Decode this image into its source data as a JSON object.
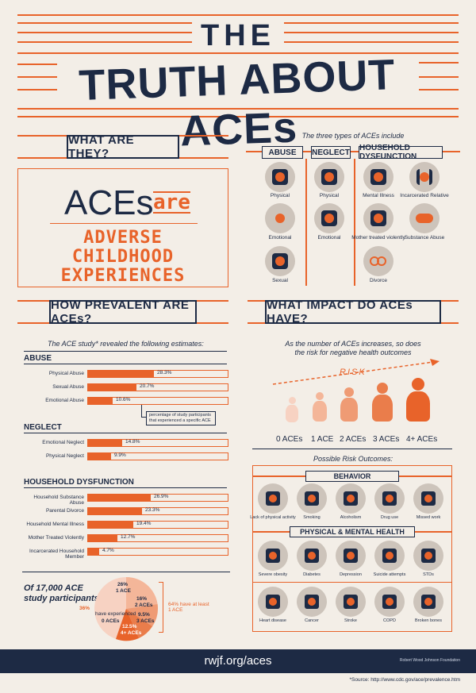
{
  "header": {
    "line1": "THE",
    "line2": "TRUTH ABOUT ACEs"
  },
  "what": {
    "heading": "WHAT ARE THEY?",
    "aces": "ACEs",
    "are": "are",
    "def": [
      "ADVERSE",
      "CHILDHOOD",
      "EXPERIENCES"
    ]
  },
  "types": {
    "title": "The three types of ACEs include",
    "columns": [
      {
        "label": "ABUSE",
        "items": [
          "Physical",
          "Emotional",
          "Sexual"
        ]
      },
      {
        "label": "NEGLECT",
        "items": [
          "Physical",
          "Emotional"
        ]
      },
      {
        "label": "HOUSEHOLD DYSFUNCTION",
        "items": [
          "Mental Illness",
          "Incarcerated Relative",
          "Mother treated violently",
          "Substance Abuse",
          "Divorce"
        ]
      }
    ]
  },
  "prevalence": {
    "heading": "HOW PREVALENT ARE ACEs?",
    "subtitle": "The ACE study* revealed the following estimates:",
    "abuse": {
      "label": "ABUSE",
      "rows": [
        {
          "name": "Physical Abuse",
          "value": "28.3%",
          "pct": 28.3
        },
        {
          "name": "Sexual Abuse",
          "value": "20.7%",
          "pct": 20.7
        },
        {
          "name": "Emotional Abuse",
          "value": "10.6%",
          "pct": 10.6
        }
      ]
    },
    "note": "percentage of study participants that experienced a specific ACE",
    "neglect": {
      "label": "NEGLECT",
      "rows": [
        {
          "name": "Emotional Neglect",
          "value": "14.8%",
          "pct": 14.8
        },
        {
          "name": "Physical Neglect",
          "value": "9.9%",
          "pct": 9.9
        }
      ]
    },
    "household": {
      "label": "HOUSEHOLD DYSFUNCTION",
      "rows": [
        {
          "name": "Household Substance Abuse",
          "value": "26.9%",
          "pct": 26.9
        },
        {
          "name": "Parental Divorce",
          "value": "23.3%",
          "pct": 23.3
        },
        {
          "name": "Household Mental Illness",
          "value": "19.4%",
          "pct": 19.4
        },
        {
          "name": "Mother Treated Violently",
          "value": "12.7%",
          "pct": 12.7
        },
        {
          "name": "Incarcerated Household Member",
          "value": "4.7%",
          "pct": 4.7
        }
      ]
    },
    "study": {
      "of": "Of 17,000 ACE",
      "participants": "study participants:"
    },
    "pie": {
      "zero_pct": "36%",
      "zero_label": "have experienced",
      "zero_aces": "0 ACEs",
      "slices": [
        {
          "pct": "26%",
          "label": "1 ACE"
        },
        {
          "pct": "16%",
          "label": "2 ACEs"
        },
        {
          "pct": "9.5%",
          "label": "3 ACEs"
        },
        {
          "pct": "12.5%",
          "label": "4+ ACEs"
        }
      ],
      "bracket": "64% have at least 1 ACE"
    }
  },
  "impact": {
    "heading": "WHAT IMPACT DO ACEs HAVE?",
    "sub": [
      "As the number of ACEs increases, so does",
      "the risk for negative health outcomes"
    ],
    "risk": "RISK",
    "levels": [
      "0 ACEs",
      "1 ACE",
      "2 ACEs",
      "3 ACEs",
      "4+ ACEs"
    ],
    "outcomes_title": "Possible Risk Outcomes:",
    "behavior": {
      "label": "BEHAVIOR",
      "items": [
        "Lack of physical activity",
        "Smoking",
        "Alcoholism",
        "Drug use",
        "Missed work"
      ]
    },
    "health": {
      "label": "PHYSICAL & MENTAL HEALTH",
      "row1": [
        "Severe obesity",
        "Diabetes",
        "Depression",
        "Suicide attempts",
        "STDs"
      ],
      "row2": [
        "Heart disease",
        "Cancer",
        "Stroke",
        "COPD",
        "Broken bones"
      ]
    }
  },
  "footer": {
    "url": "rwjf.org/aces",
    "org": "Robert Wood Johnson Foundation",
    "source": "*Source: http://www.cdc.gov/ace/prevalence.htm"
  },
  "colors": {
    "navy": "#1d2a44",
    "orange": "#e8632a",
    "bg": "#f3eee7",
    "gray": "#cdc4bb"
  }
}
